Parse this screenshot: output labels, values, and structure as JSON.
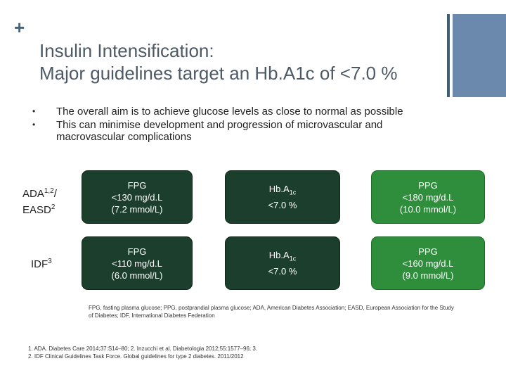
{
  "slide": {
    "plus_symbol": "+",
    "title_line1": "Insulin Intensification:",
    "title_line2": "Major guidelines target an Hb.A1c of <7.0 %",
    "bullets": [
      "The overall aim is to achieve glucose levels as close to normal as possible",
      "This can minimise development and progression of microvascular and macrovascular complications"
    ],
    "bullet_symbol": "•"
  },
  "rows": [
    {
      "label": "ADA",
      "label_sup": "1,2",
      "label_rest": "/ EASD",
      "label_sup2": "2",
      "fpg": {
        "title": "FPG",
        "line2": "<130 mg/d.L",
        "line3": "(7.2 mmol/L)"
      },
      "hba1c": {
        "title": "Hb.A",
        "sub": "1c",
        "line2": "<7.0 %"
      },
      "ppg": {
        "title": "PPG",
        "line2": "<180 mg/d.L",
        "line3": "(10.0 mmol/L)"
      }
    },
    {
      "label": "IDF",
      "label_sup": "3",
      "fpg": {
        "title": "FPG",
        "line2": "<110 mg/d.L",
        "line3": "(6.0 mmol/L)"
      },
      "hba1c": {
        "title": "Hb.A",
        "sub": "1c",
        "line2": "<7.0 %"
      },
      "ppg": {
        "title": "PPG",
        "line2": "<160 mg/d.L",
        "line3": "(9.0 mmol/L)"
      }
    }
  ],
  "footnote": "FPG, fasting plasma glucose; PPG, postprandial plasma glucose; ADA, American Diabetes Association; EASD, European Association for the Study of Diabetes; IDF, International Diabetes Federation",
  "references": [
    "1. ADA. Diabetes Care 2014;37:S14–80; 2. Inzucchi et al. Diabetologia 2012;55:1577–96; 3.",
    "2. IDF Clinical Guidelines Task Force. Global guidelines for type 2 diabetes. 2011/2012"
  ],
  "colors": {
    "dark_box": "#1c3f2d",
    "green_box": "#2e8e3b",
    "accent_bar": "#6a89ad"
  }
}
